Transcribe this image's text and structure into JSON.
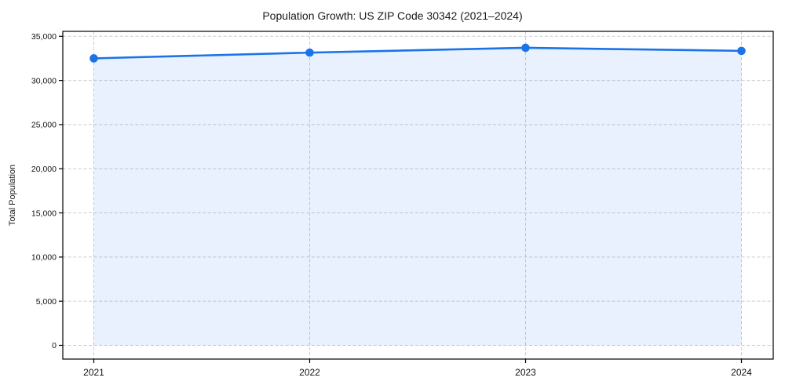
{
  "chart_data": {
    "type": "area",
    "title": "Population Growth: US ZIP Code 30342 (2021–2024)",
    "xlabel": "",
    "ylabel": "Total Population",
    "x": [
      "2021",
      "2022",
      "2023",
      "2024"
    ],
    "series": [
      {
        "name": "Total Population",
        "values": [
          32500,
          33150,
          33700,
          33350
        ]
      }
    ],
    "ylim": [
      0,
      35000
    ],
    "yticks": [
      0,
      5000,
      10000,
      15000,
      20000,
      25000,
      30000,
      35000
    ],
    "ytick_labels": [
      "0",
      "5,000",
      "10,000",
      "15,000",
      "20,000",
      "25,000",
      "30,000",
      "35,000"
    ],
    "xtick_labels": [
      "2021",
      "2022",
      "2023",
      "2024"
    ],
    "grid": true,
    "grid_style": "dashed",
    "legend": "none",
    "colors": {
      "line": "#1a73e8",
      "fill": "rgba(26,115,232,0.10)",
      "grid": "#cccccc",
      "axis": "#000000",
      "text": "#1a1a1a",
      "background": "#ffffff"
    }
  }
}
